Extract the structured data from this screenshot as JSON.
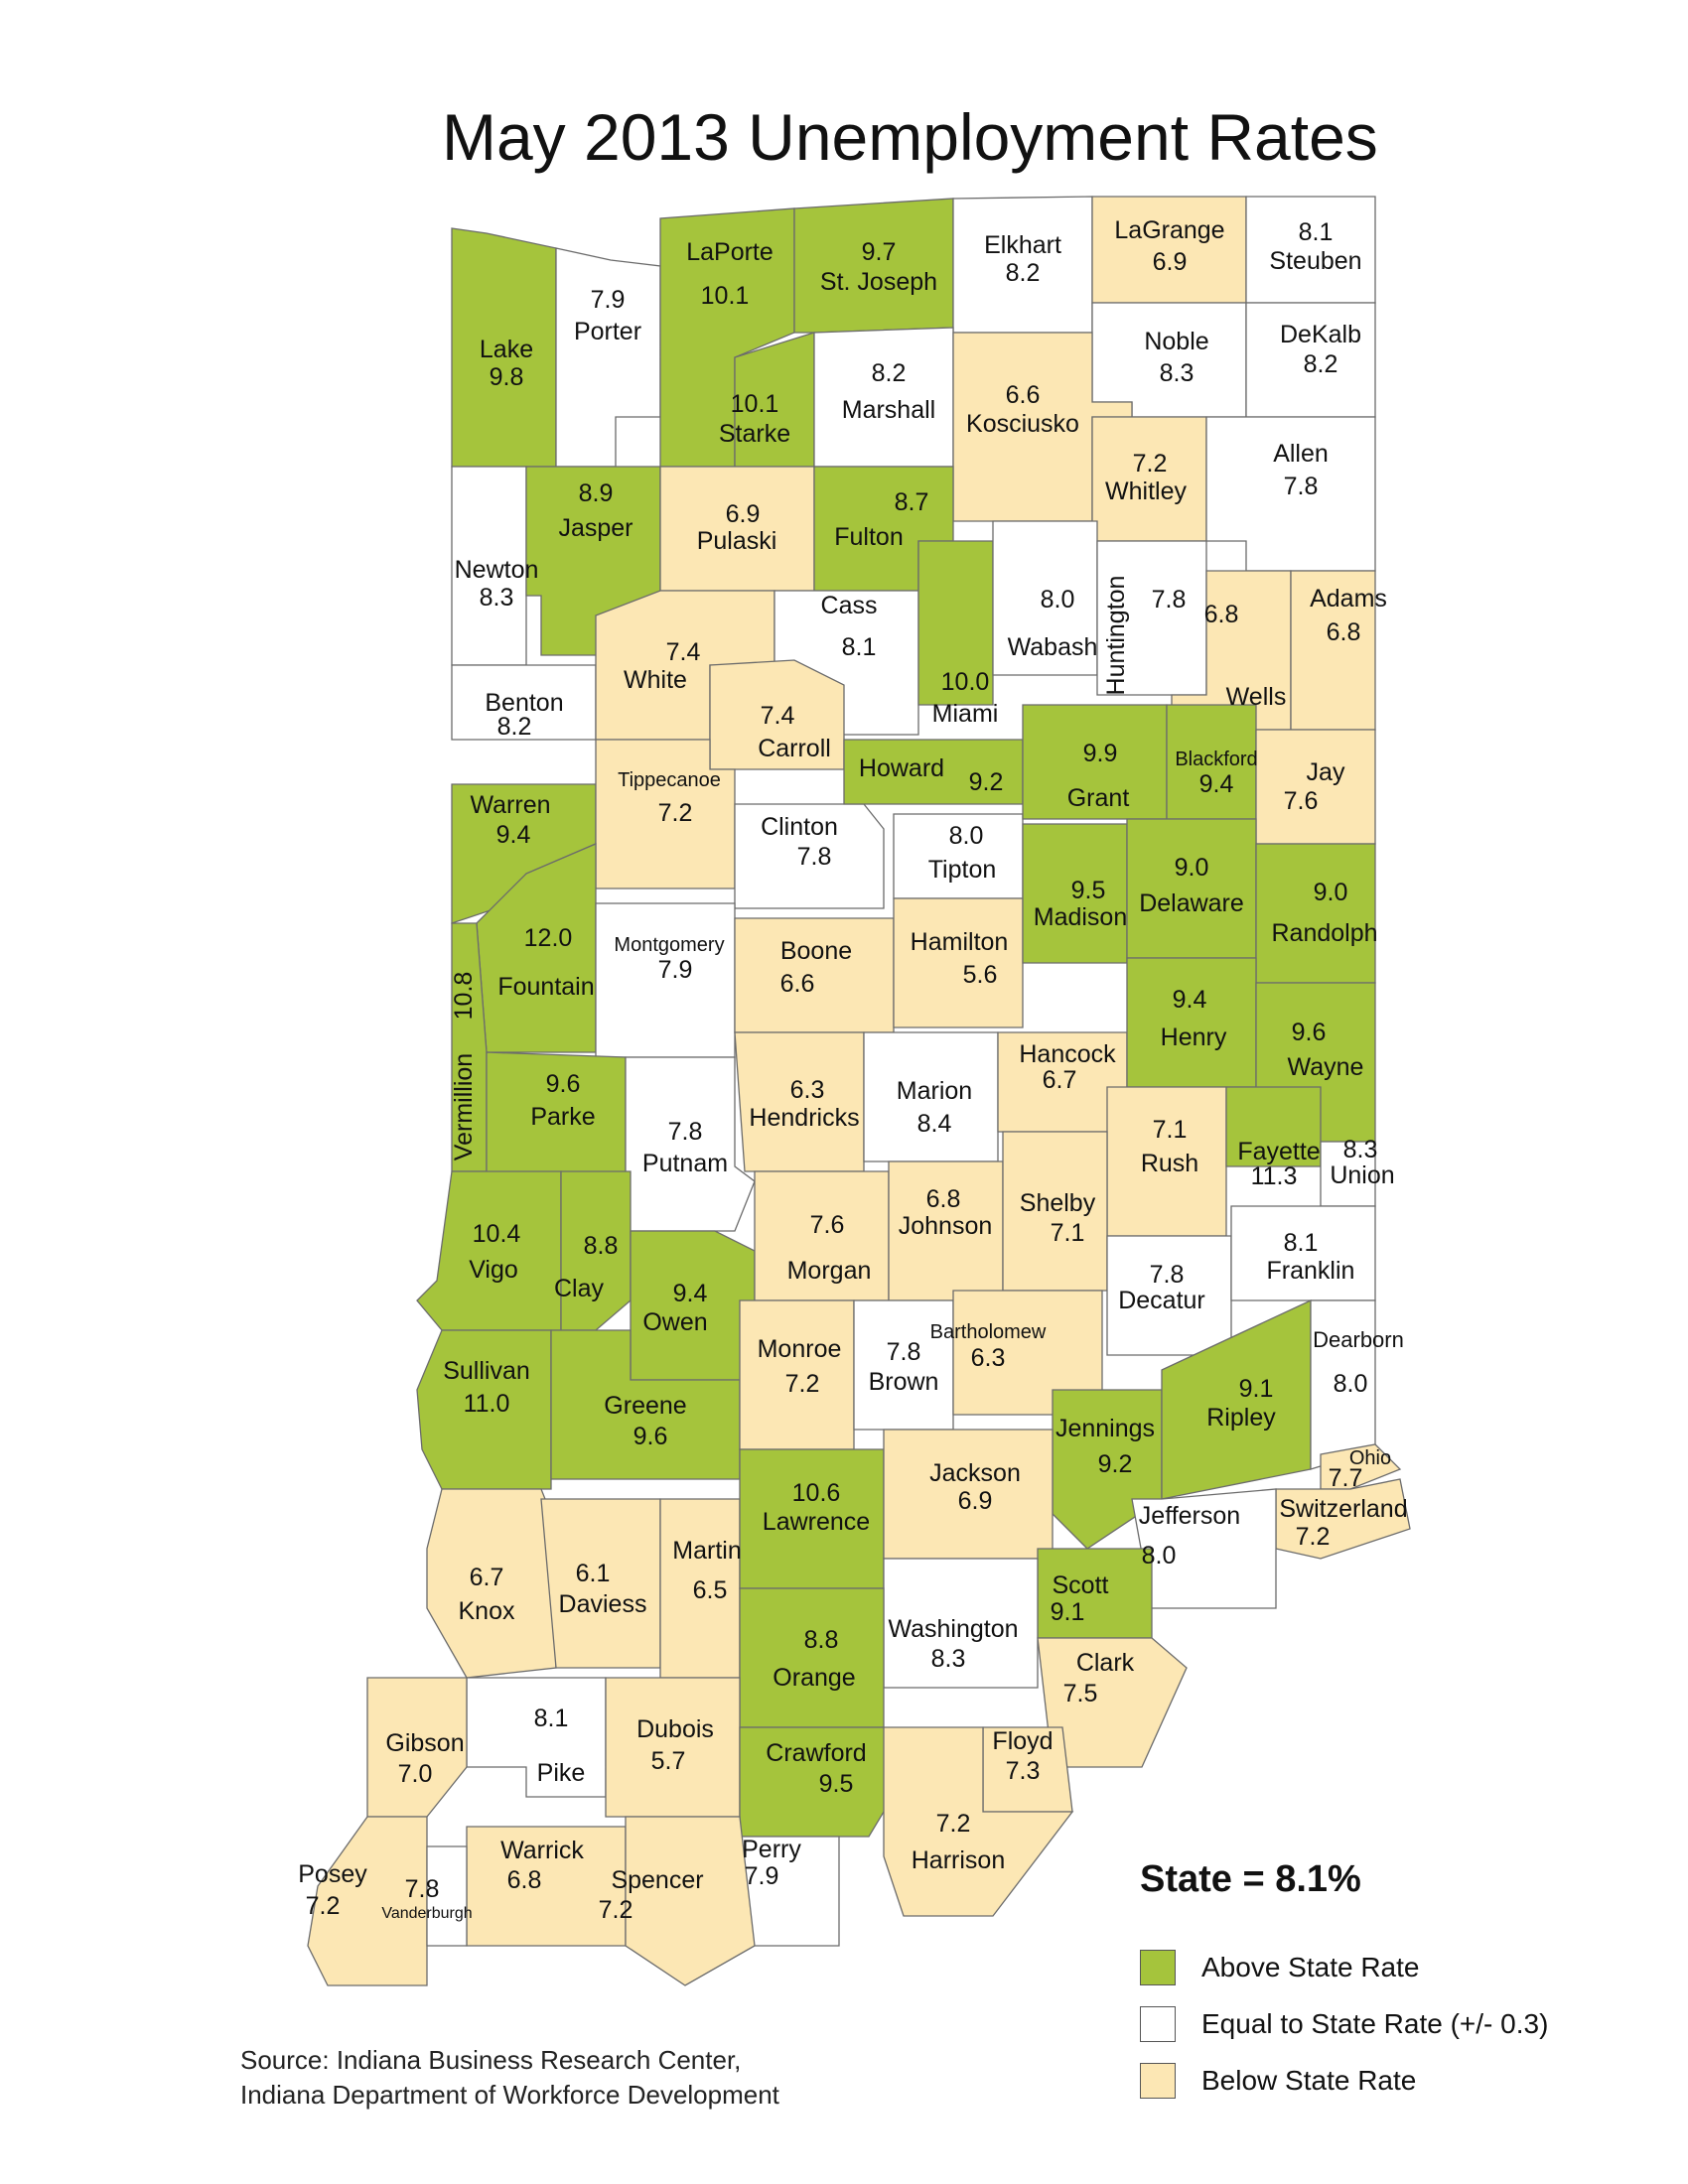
{
  "title": "May 2013 Unemployment Rates",
  "state_rate": "State = 8.1%",
  "legend": [
    {
      "key": "above",
      "label": "Above State Rate",
      "color": "#a5c43c"
    },
    {
      "key": "equal",
      "label": "Equal to State Rate (+/- 0.3)",
      "color": "#ffffff"
    },
    {
      "key": "below",
      "label": "Below State Rate",
      "color": "#fce7b4"
    }
  ],
  "source": [
    "Source: Indiana Business Research Center,",
    "Indiana Department of Workforce Development"
  ],
  "counties": [
    {
      "name": "Lake",
      "rate": "9.8",
      "category": "above"
    },
    {
      "name": "Porter",
      "rate": "7.9",
      "category": "equal"
    },
    {
      "name": "LaPorte",
      "rate": "10.1",
      "category": "above"
    },
    {
      "name": "St. Joseph",
      "rate": "9.7",
      "category": "above"
    },
    {
      "name": "Elkhart",
      "rate": "8.2",
      "category": "equal"
    },
    {
      "name": "LaGrange",
      "rate": "6.9",
      "category": "below"
    },
    {
      "name": "Steuben",
      "rate": "8.1",
      "category": "equal"
    },
    {
      "name": "Noble",
      "rate": "8.3",
      "category": "equal"
    },
    {
      "name": "DeKalb",
      "rate": "8.2",
      "category": "equal"
    },
    {
      "name": "Starke",
      "rate": "10.1",
      "category": "above"
    },
    {
      "name": "Marshall",
      "rate": "8.2",
      "category": "equal"
    },
    {
      "name": "Kosciusko",
      "rate": "6.6",
      "category": "below"
    },
    {
      "name": "Newton",
      "rate": "8.3",
      "category": "equal"
    },
    {
      "name": "Jasper",
      "rate": "8.9",
      "category": "above"
    },
    {
      "name": "Pulaski",
      "rate": "6.9",
      "category": "below"
    },
    {
      "name": "Fulton",
      "rate": "8.7",
      "category": "above"
    },
    {
      "name": "Whitley",
      "rate": "7.2",
      "category": "below"
    },
    {
      "name": "Allen",
      "rate": "7.8",
      "category": "equal"
    },
    {
      "name": "Benton",
      "rate": "8.2",
      "category": "equal"
    },
    {
      "name": "White",
      "rate": "7.4",
      "category": "below"
    },
    {
      "name": "Cass",
      "rate": "8.1",
      "category": "equal"
    },
    {
      "name": "Miami",
      "rate": "10.0",
      "category": "above"
    },
    {
      "name": "Wabash",
      "rate": "8.0",
      "category": "equal"
    },
    {
      "name": "Huntington",
      "rate": "7.8",
      "category": "equal"
    },
    {
      "name": "Wells",
      "rate": "6.8",
      "category": "below"
    },
    {
      "name": "Adams",
      "rate": "6.8",
      "category": "below"
    },
    {
      "name": "Carroll",
      "rate": "7.4",
      "category": "below"
    },
    {
      "name": "Warren",
      "rate": "9.4",
      "category": "above"
    },
    {
      "name": "Tippecanoe",
      "rate": "7.2",
      "category": "below"
    },
    {
      "name": "Clinton",
      "rate": "7.8",
      "category": "equal"
    },
    {
      "name": "Howard",
      "rate": "9.2",
      "category": "above"
    },
    {
      "name": "Tipton",
      "rate": "8.0",
      "category": "equal"
    },
    {
      "name": "Grant",
      "rate": "9.9",
      "category": "above"
    },
    {
      "name": "Blackford",
      "rate": "9.4",
      "category": "above"
    },
    {
      "name": "Jay",
      "rate": "7.6",
      "category": "below"
    },
    {
      "name": "Fountain",
      "rate": "12.0",
      "category": "above"
    },
    {
      "name": "Vermillion",
      "rate": "10.8",
      "category": "above"
    },
    {
      "name": "Montgomery",
      "rate": "7.9",
      "category": "equal"
    },
    {
      "name": "Boone",
      "rate": "6.6",
      "category": "below"
    },
    {
      "name": "Hamilton",
      "rate": "5.6",
      "category": "below"
    },
    {
      "name": "Madison",
      "rate": "9.5",
      "category": "above"
    },
    {
      "name": "Delaware",
      "rate": "9.0",
      "category": "above"
    },
    {
      "name": "Randolph",
      "rate": "9.0",
      "category": "above"
    },
    {
      "name": "Parke",
      "rate": "9.6",
      "category": "above"
    },
    {
      "name": "Putnam",
      "rate": "7.8",
      "category": "equal"
    },
    {
      "name": "Hendricks",
      "rate": "6.3",
      "category": "below"
    },
    {
      "name": "Marion",
      "rate": "8.4",
      "category": "equal"
    },
    {
      "name": "Hancock",
      "rate": "6.7",
      "category": "below"
    },
    {
      "name": "Henry",
      "rate": "9.4",
      "category": "above"
    },
    {
      "name": "Wayne",
      "rate": "9.6",
      "category": "above"
    },
    {
      "name": "Rush",
      "rate": "7.1",
      "category": "below"
    },
    {
      "name": "Fayette",
      "rate": "11.3",
      "category": "above"
    },
    {
      "name": "Union",
      "rate": "8.3",
      "category": "equal"
    },
    {
      "name": "Vigo",
      "rate": "10.4",
      "category": "above"
    },
    {
      "name": "Clay",
      "rate": "8.8",
      "category": "above"
    },
    {
      "name": "Owen",
      "rate": "9.4",
      "category": "above"
    },
    {
      "name": "Morgan",
      "rate": "7.6",
      "category": "below"
    },
    {
      "name": "Johnson",
      "rate": "6.8",
      "category": "below"
    },
    {
      "name": "Shelby",
      "rate": "7.1",
      "category": "below"
    },
    {
      "name": "Decatur",
      "rate": "7.8",
      "category": "equal"
    },
    {
      "name": "Franklin",
      "rate": "8.1",
      "category": "equal"
    },
    {
      "name": "Sullivan",
      "rate": "11.0",
      "category": "above"
    },
    {
      "name": "Greene",
      "rate": "9.6",
      "category": "above"
    },
    {
      "name": "Monroe",
      "rate": "7.2",
      "category": "below"
    },
    {
      "name": "Brown",
      "rate": "7.8",
      "category": "equal"
    },
    {
      "name": "Bartholomew",
      "rate": "6.3",
      "category": "below"
    },
    {
      "name": "Jennings",
      "rate": "9.2",
      "category": "above"
    },
    {
      "name": "Ripley",
      "rate": "9.1",
      "category": "above"
    },
    {
      "name": "Dearborn",
      "rate": "8.0",
      "category": "equal"
    },
    {
      "name": "Ohio",
      "rate": "7.7",
      "category": "below"
    },
    {
      "name": "Switzerland",
      "rate": "7.2",
      "category": "below"
    },
    {
      "name": "Knox",
      "rate": "6.7",
      "category": "below"
    },
    {
      "name": "Daviess",
      "rate": "6.1",
      "category": "below"
    },
    {
      "name": "Martin",
      "rate": "6.5",
      "category": "below"
    },
    {
      "name": "Lawrence",
      "rate": "10.6",
      "category": "above"
    },
    {
      "name": "Jackson",
      "rate": "6.9",
      "category": "below"
    },
    {
      "name": "Jefferson",
      "rate": "8.0",
      "category": "equal"
    },
    {
      "name": "Scott",
      "rate": "9.1",
      "category": "above"
    },
    {
      "name": "Washington",
      "rate": "8.3",
      "category": "equal"
    },
    {
      "name": "Orange",
      "rate": "8.8",
      "category": "above"
    },
    {
      "name": "Clark",
      "rate": "7.5",
      "category": "below"
    },
    {
      "name": "Pike",
      "rate": "8.1",
      "category": "equal"
    },
    {
      "name": "Gibson",
      "rate": "7.0",
      "category": "below"
    },
    {
      "name": "Dubois",
      "rate": "5.7",
      "category": "below"
    },
    {
      "name": "Crawford",
      "rate": "9.5",
      "category": "above"
    },
    {
      "name": "Floyd",
      "rate": "7.3",
      "category": "below"
    },
    {
      "name": "Harrison",
      "rate": "7.2",
      "category": "below"
    },
    {
      "name": "Perry",
      "rate": "7.9",
      "category": "equal"
    },
    {
      "name": "Warrick",
      "rate": "6.8",
      "category": "below"
    },
    {
      "name": "Spencer",
      "rate": "7.2",
      "category": "below"
    },
    {
      "name": "Posey",
      "rate": "7.2",
      "category": "below"
    },
    {
      "name": "Vanderburgh",
      "rate": "7.8",
      "category": "equal"
    }
  ]
}
